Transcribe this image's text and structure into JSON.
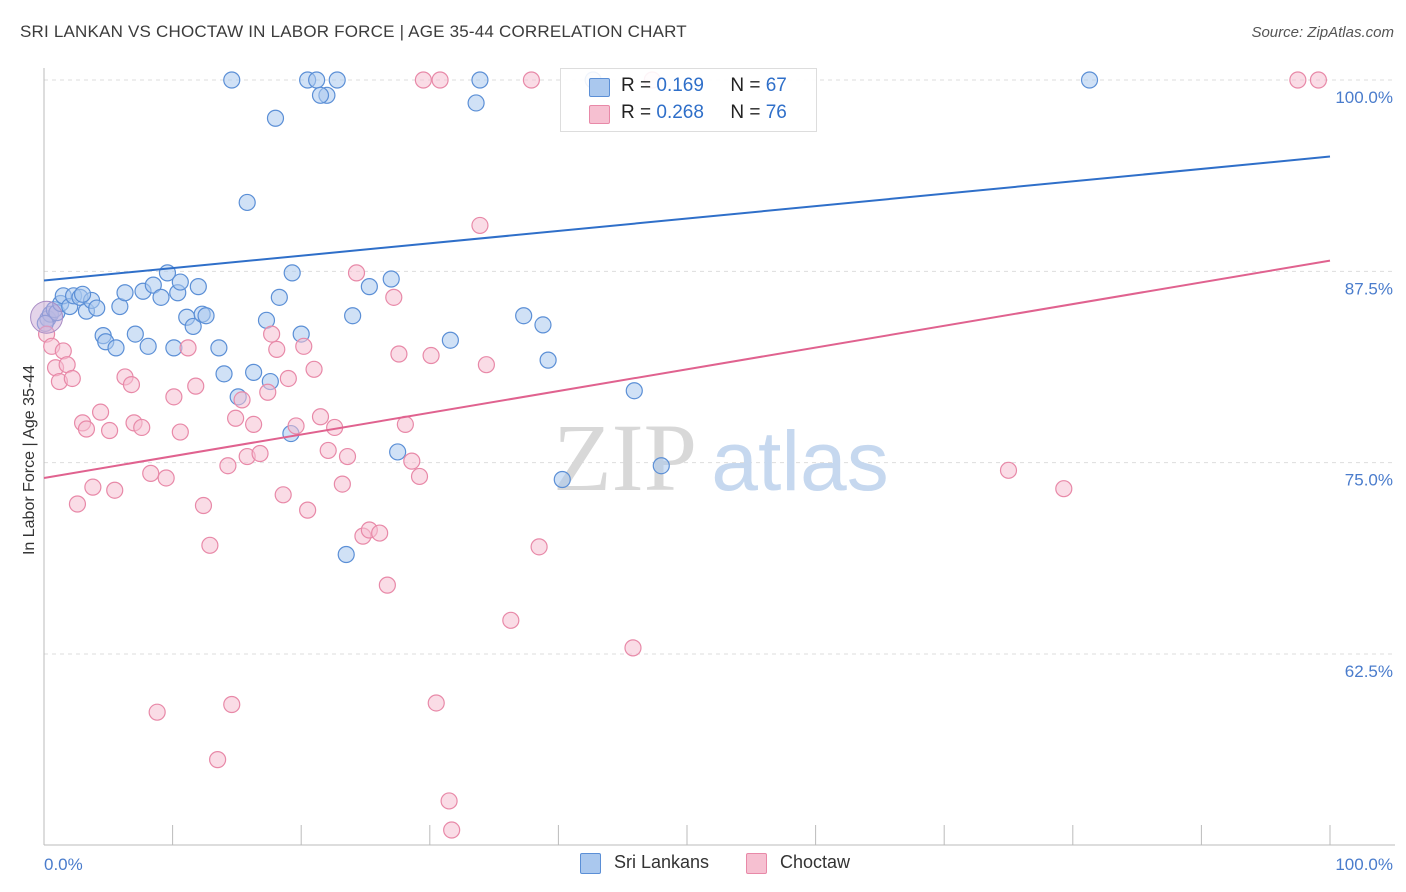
{
  "title": "SRI LANKAN VS CHOCTAW IN LABOR FORCE | AGE 35-44 CORRELATION CHART",
  "source": "Source: ZipAtlas.com",
  "watermark": {
    "zip": "ZIP",
    "atlas": "atlas"
  },
  "legend": {
    "rows": [
      {
        "r_label": "R =",
        "r_value": "0.169",
        "n_label": "N =",
        "n_value": "67"
      },
      {
        "r_label": "R =",
        "r_value": "0.268",
        "n_label": "N =",
        "n_value": "76"
      }
    ]
  },
  "bottom_legend": [
    {
      "label": "Sri Lankans"
    },
    {
      "label": "Choctaw"
    }
  ],
  "colors": {
    "blue_fill": "#aac8ee",
    "blue_stroke": "#5b8fd6",
    "blue_line": "#2f6fc9",
    "pink_fill": "#f6c0d1",
    "pink_stroke": "#e889a8",
    "pink_line": "#e0628f",
    "tick_label": "#4a7ccc",
    "grid": "#dddddd"
  },
  "chart_data": {
    "type": "scatter",
    "title": "SRI LANKAN VS CHOCTAW IN LABOR FORCE | AGE 35-44 CORRELATION CHART",
    "xlabel": "",
    "ylabel": "In Labor Force | Age 35-44",
    "xlim": [
      0,
      100
    ],
    "ylim": [
      50,
      101
    ],
    "x_tick_labels": [
      {
        "value": 0,
        "label": "0.0%"
      },
      {
        "value": 100,
        "label": "100.0%"
      }
    ],
    "y_ticks": [
      {
        "value": 100,
        "label": "100.0%"
      },
      {
        "value": 87.5,
        "label": "87.5%"
      },
      {
        "value": 75,
        "label": "75.0%"
      },
      {
        "value": 62.5,
        "label": "62.5%"
      }
    ],
    "grid": true,
    "legend_position": "top-center",
    "series": [
      {
        "name": "Sri Lankans",
        "r": 0.169,
        "n": 67,
        "trend": {
          "x0": 0,
          "y0": 86.9,
          "x1": 100,
          "y1": 95.0
        },
        "points": [
          [
            0.3,
            84.4
          ],
          [
            0.5,
            84.7
          ],
          [
            0.8,
            85.0
          ],
          [
            1.0,
            84.8
          ],
          [
            1.3,
            85.4
          ],
          [
            1.5,
            85.9
          ],
          [
            2.0,
            85.2
          ],
          [
            2.3,
            85.9
          ],
          [
            2.8,
            85.8
          ],
          [
            3.3,
            84.9
          ],
          [
            3.7,
            85.6
          ],
          [
            4.1,
            85.1
          ],
          [
            4.6,
            83.3
          ],
          [
            4.8,
            82.9
          ],
          [
            5.6,
            82.5
          ],
          [
            5.9,
            85.2
          ],
          [
            6.3,
            86.1
          ],
          [
            7.1,
            83.4
          ],
          [
            7.7,
            86.2
          ],
          [
            8.1,
            82.6
          ],
          [
            8.5,
            86.6
          ],
          [
            9.1,
            85.8
          ],
          [
            9.6,
            87.4
          ],
          [
            10.1,
            82.5
          ],
          [
            10.4,
            86.1
          ],
          [
            10.6,
            86.8
          ],
          [
            11.1,
            84.5
          ],
          [
            11.6,
            83.9
          ],
          [
            12.3,
            84.7
          ],
          [
            12.6,
            84.6
          ],
          [
            13.6,
            82.5
          ],
          [
            14.0,
            80.8
          ],
          [
            14.6,
            100.0
          ],
          [
            15.1,
            79.3
          ],
          [
            15.8,
            92.0
          ],
          [
            16.3,
            80.9
          ],
          [
            17.3,
            84.3
          ],
          [
            17.6,
            80.3
          ],
          [
            18.0,
            97.5
          ],
          [
            18.3,
            85.8
          ],
          [
            19.2,
            76.9
          ],
          [
            19.3,
            87.4
          ],
          [
            20.0,
            83.4
          ],
          [
            20.5,
            100.0
          ],
          [
            21.2,
            100.0
          ],
          [
            22.0,
            99.0
          ],
          [
            22.8,
            100.0
          ],
          [
            23.5,
            69.0
          ],
          [
            24.0,
            84.6
          ],
          [
            25.3,
            86.5
          ],
          [
            27.0,
            87.0
          ],
          [
            27.5,
            75.7
          ],
          [
            31.6,
            83.0
          ],
          [
            33.6,
            98.5
          ],
          [
            33.9,
            100.0
          ],
          [
            37.3,
            84.6
          ],
          [
            38.8,
            84.0
          ],
          [
            39.2,
            81.7
          ],
          [
            40.3,
            73.9
          ],
          [
            42.7,
            100.0
          ],
          [
            45.9,
            79.7
          ],
          [
            48.0,
            74.8
          ],
          [
            81.3,
            100.0
          ],
          [
            0.1,
            84.1
          ],
          [
            3.0,
            86.0
          ],
          [
            12.0,
            86.5
          ],
          [
            21.5,
            99.0
          ]
        ]
      },
      {
        "name": "Choctaw",
        "r": 0.268,
        "n": 76,
        "trend": {
          "x0": 0,
          "y0": 74.0,
          "x1": 100,
          "y1": 88.2
        },
        "points": [
          [
            0.2,
            83.4
          ],
          [
            0.6,
            82.6
          ],
          [
            0.9,
            81.2
          ],
          [
            1.2,
            80.3
          ],
          [
            1.5,
            82.3
          ],
          [
            1.8,
            81.4
          ],
          [
            2.2,
            80.5
          ],
          [
            2.6,
            72.3
          ],
          [
            3.0,
            77.6
          ],
          [
            3.3,
            77.2
          ],
          [
            3.8,
            73.4
          ],
          [
            4.4,
            78.3
          ],
          [
            5.1,
            77.1
          ],
          [
            5.5,
            73.2
          ],
          [
            6.3,
            80.6
          ],
          [
            6.8,
            80.1
          ],
          [
            7.0,
            77.6
          ],
          [
            7.6,
            77.3
          ],
          [
            8.3,
            74.3
          ],
          [
            8.8,
            58.7
          ],
          [
            9.5,
            74.0
          ],
          [
            10.1,
            79.3
          ],
          [
            10.6,
            77.0
          ],
          [
            11.2,
            82.5
          ],
          [
            11.8,
            80.0
          ],
          [
            12.4,
            72.2
          ],
          [
            12.9,
            69.6
          ],
          [
            13.5,
            55.6
          ],
          [
            14.3,
            74.8
          ],
          [
            14.6,
            59.2
          ],
          [
            14.9,
            77.9
          ],
          [
            15.4,
            79.1
          ],
          [
            15.8,
            75.4
          ],
          [
            16.3,
            77.5
          ],
          [
            16.8,
            75.6
          ],
          [
            17.4,
            79.6
          ],
          [
            17.7,
            83.4
          ],
          [
            18.1,
            82.4
          ],
          [
            18.6,
            72.9
          ],
          [
            19.0,
            80.5
          ],
          [
            19.6,
            77.4
          ],
          [
            20.2,
            82.6
          ],
          [
            20.5,
            71.9
          ],
          [
            21.0,
            81.1
          ],
          [
            21.5,
            78.0
          ],
          [
            22.1,
            75.8
          ],
          [
            22.6,
            77.3
          ],
          [
            23.2,
            73.6
          ],
          [
            23.6,
            75.4
          ],
          [
            24.3,
            87.4
          ],
          [
            24.8,
            70.2
          ],
          [
            25.3,
            70.6
          ],
          [
            26.1,
            70.4
          ],
          [
            26.7,
            67.0
          ],
          [
            27.2,
            85.8
          ],
          [
            27.6,
            82.1
          ],
          [
            28.1,
            77.5
          ],
          [
            28.6,
            75.1
          ],
          [
            29.2,
            74.1
          ],
          [
            30.1,
            82.0
          ],
          [
            30.5,
            59.3
          ],
          [
            30.8,
            100.0
          ],
          [
            31.5,
            52.9
          ],
          [
            31.7,
            51.0
          ],
          [
            33.9,
            90.5
          ],
          [
            34.4,
            81.4
          ],
          [
            36.3,
            64.7
          ],
          [
            37.9,
            100.0
          ],
          [
            38.5,
            69.5
          ],
          [
            45.8,
            62.9
          ],
          [
            47.3,
            100.0
          ],
          [
            75.0,
            74.5
          ],
          [
            79.3,
            73.3
          ],
          [
            97.5,
            100.0
          ],
          [
            99.1,
            100.0
          ],
          [
            29.5,
            100.0
          ]
        ]
      }
    ]
  }
}
